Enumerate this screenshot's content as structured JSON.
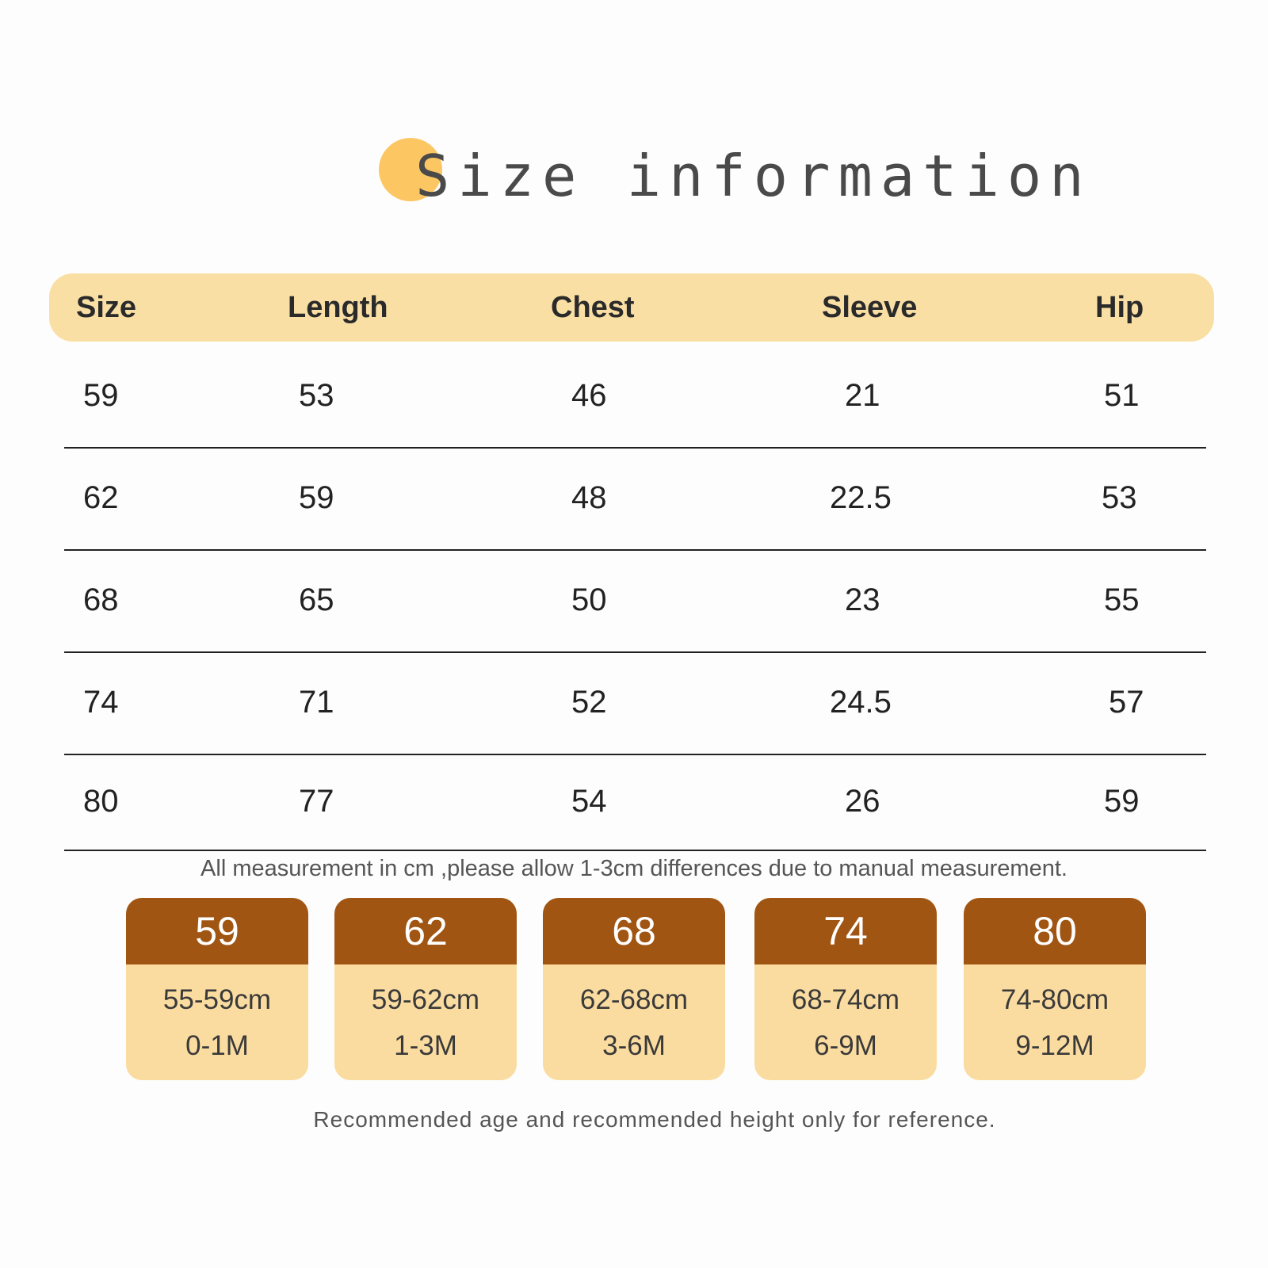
{
  "title": "Size information",
  "table": {
    "headers": [
      "Size",
      "Length",
      "Chest",
      "Sleeve",
      "Hip"
    ],
    "rows": [
      [
        "59",
        "53",
        "46",
        "21",
        "51"
      ],
      [
        "62",
        "59",
        "48",
        "22.5",
        "53"
      ],
      [
        "68",
        "65",
        "50",
        "23",
        "55"
      ],
      [
        "74",
        "71",
        "52",
        "24.5",
        "57"
      ],
      [
        "80",
        "77",
        "54",
        "26",
        "59"
      ]
    ]
  },
  "note": "All measurement in cm ,please allow 1-3cm differences due to manual measurement.",
  "cards": [
    {
      "size": "59",
      "height": "55-59cm",
      "age": "0-1M"
    },
    {
      "size": "62",
      "height": "59-62cm",
      "age": "1-3M"
    },
    {
      "size": "68",
      "height": "62-68cm",
      "age": "3-6M"
    },
    {
      "size": "74",
      "height": "68-74cm",
      "age": "6-9M"
    },
    {
      "size": "80",
      "height": "74-80cm",
      "age": "9-12M"
    }
  ],
  "footnote": "Recommended age and recommended height only for reference.",
  "colors": {
    "accent_dot": "#fcc763",
    "header_bg": "#fadfa4",
    "card_top": "#a05513",
    "card_body": "#fbdca0"
  }
}
